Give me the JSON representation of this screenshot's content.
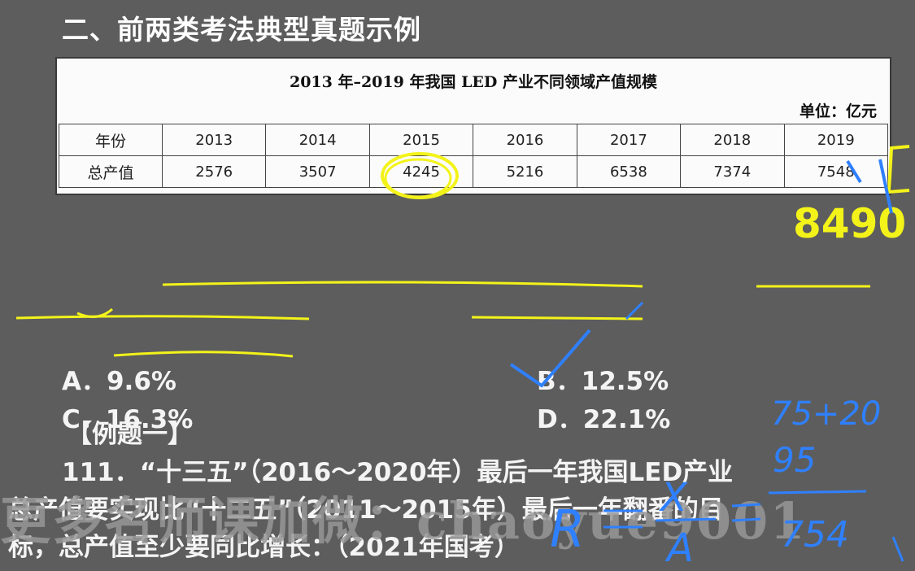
{
  "heading": "二、前两类考法典型真题示例",
  "table": {
    "title": "2013 年–2019 年我国 LED 产业不同领域产值规模",
    "unit": "单位：亿元",
    "row_year_label": "年份",
    "row_value_label": "总产值",
    "years": [
      "2013",
      "2014",
      "2015",
      "2016",
      "2017",
      "2018",
      "2019"
    ],
    "values": [
      "2576",
      "3507",
      "4245",
      "5216",
      "6538",
      "7374",
      "7548"
    ]
  },
  "question": {
    "label": "【例题一】",
    "line1": "111．“十三五”（2016～2020年）最后一年我国LED产业",
    "line2": "总产值要实现比“十二五”（2011～2015年）最后一年翻番的目",
    "line3": "标，总产值至少要同比增长：（2021年国考）",
    "options": {
      "a": "A．9.6%",
      "b": "B．12.5%",
      "c": "C．16.3%",
      "d": "D．22.1%"
    }
  },
  "watermark": "更多名师课加微：chaoyue9001",
  "annotations": {
    "colors": {
      "yellow": "#f3f31a",
      "blue": "#2f80ff"
    },
    "yellow_number": "8490",
    "blue_text_1": "75+20",
    "blue_text_2": "95",
    "blue_text_3": "754",
    "blue_formula_r": "R",
    "blue_formula_x": "X",
    "blue_formula_a": "A"
  }
}
